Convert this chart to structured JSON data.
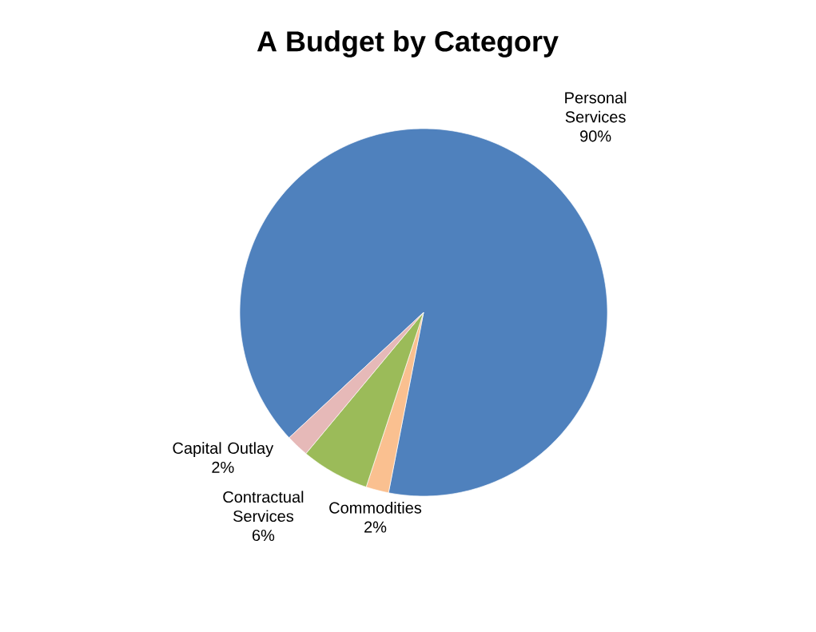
{
  "chart_data": {
    "type": "pie",
    "title": "A Budget by Category",
    "categories": [
      "Personal Services",
      "Commodities",
      "Contractual Services",
      "Capital Outlay"
    ],
    "values": [
      90,
      2,
      6,
      2
    ],
    "colors": [
      "#4f81bd",
      "#fac090",
      "#9bbb59",
      "#e6b9b8"
    ],
    "value_labels": [
      "90%",
      "2%",
      "6%",
      "2%"
    ]
  }
}
